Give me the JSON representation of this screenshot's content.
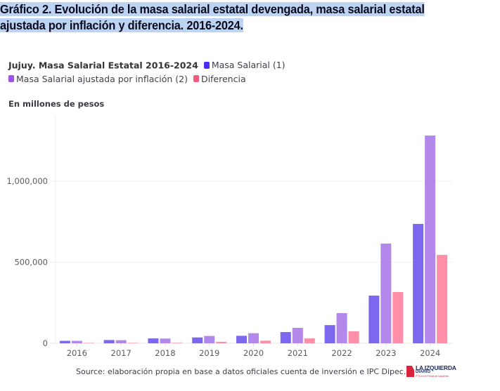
{
  "document": {
    "caption_line1": "Gráfico 2. Evolución de la masa salarial estatal devengada, masa salarial estatal",
    "caption_line2": "ajustada por inflación y diferencia. 2016-2024."
  },
  "chart_data": {
    "type": "bar",
    "title": "Jujuy. Masa Salarial Estatal 2016-2024",
    "subtitle": "En millones de pesos",
    "xlabel": "",
    "ylabel": "En millones de pesos",
    "categories": [
      "2016",
      "2017",
      "2018",
      "2019",
      "2020",
      "2021",
      "2022",
      "2023",
      "2024"
    ],
    "series": [
      {
        "name": "Masa Salarial (1)",
        "legend_color": "#4a2ff0",
        "color": "#7b68ee",
        "values": [
          15000,
          20000,
          30000,
          36000,
          46000,
          69000,
          112000,
          294000,
          736000
        ]
      },
      {
        "name": "Masa Salarial ajustada por inflación (2)",
        "legend_color": "#9a55e6",
        "color": "#b388eb",
        "values": [
          15000,
          19000,
          29000,
          45000,
          62000,
          95000,
          186000,
          615000,
          1281000
        ]
      },
      {
        "name": "Diferencia",
        "legend_color": "#f25a7e",
        "color": "#ff8fa8",
        "values": [
          0,
          0,
          3000,
          9000,
          16000,
          30000,
          74000,
          316000,
          545000
        ]
      }
    ],
    "yticks": [
      0,
      500000,
      1000000
    ],
    "ytick_labels": [
      "0",
      "500,000",
      "1,000,000"
    ],
    "ylim": [
      0,
      1400000
    ],
    "grid": true,
    "legend_position": "top-left"
  },
  "footer": {
    "source": "Source: elaboración propia en base a datos oficiales cuenta de inversión e IPC Dipec.",
    "logo_line1": "LA IZQUIERDA",
    "logo_line2": "DIARIO",
    "logo_line3": "PTS en el Frente de Izquierda"
  }
}
